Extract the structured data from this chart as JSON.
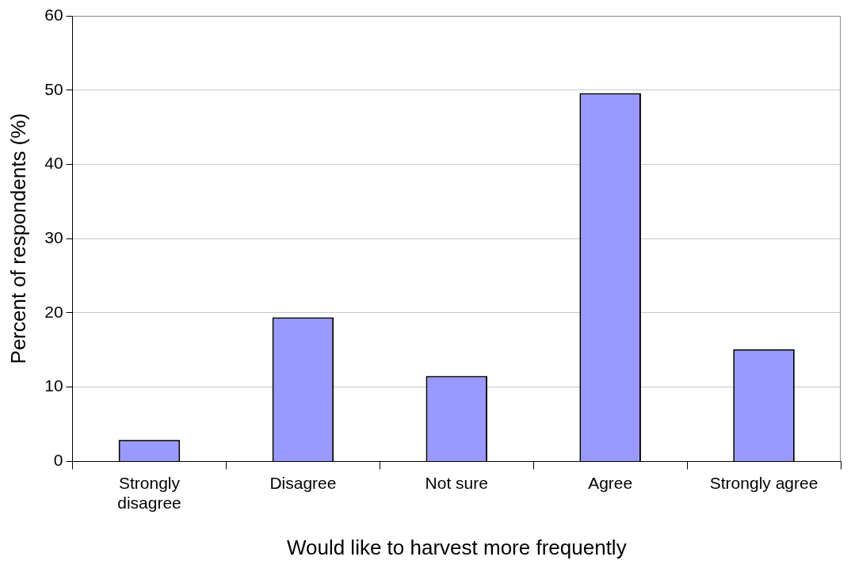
{
  "chart_data": {
    "type": "bar",
    "xlabel": "Would like to harvest more frequently",
    "ylabel": "Percent of respondents (%)",
    "categories": [
      "Strongly disagree",
      "Disagree",
      "Not sure",
      "Agree",
      "Strongly agree"
    ],
    "values": [
      2.9,
      19.4,
      11.5,
      49.6,
      15.1
    ],
    "color": "#9999ff",
    "ylim": [
      0,
      60
    ],
    "yticks": [
      0,
      10,
      20,
      30,
      40,
      50,
      60
    ],
    "grid": "y",
    "legend": false
  }
}
